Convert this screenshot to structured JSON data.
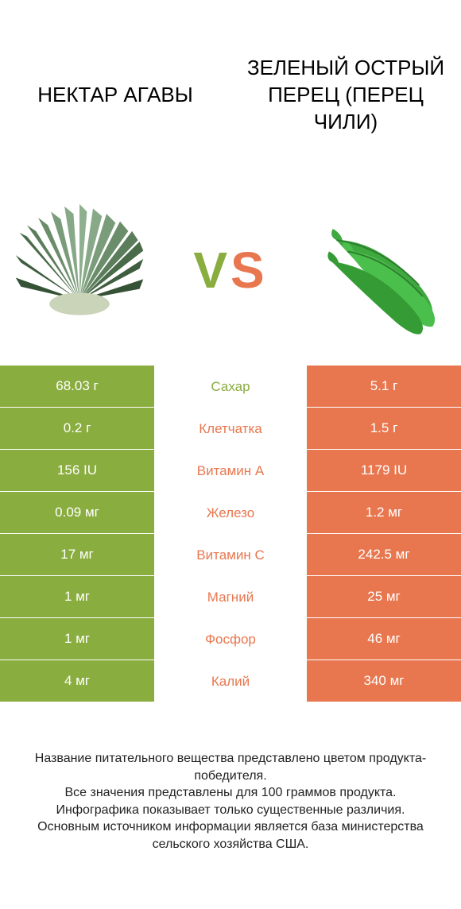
{
  "colors": {
    "left": "#8aad3f",
    "right": "#e8774f",
    "white": "#ffffff",
    "text": "#222222"
  },
  "titles": {
    "left": "НЕКТАР АГАВЫ",
    "right": "ЗЕЛЕНЫЙ ОСТРЫЙ ПЕРЕЦ (ПЕРЕЦ ЧИЛИ)"
  },
  "vs": {
    "v": "V",
    "s": "S"
  },
  "rows": [
    {
      "left": "68.03 г",
      "label": "Сахар",
      "right": "5.1 г",
      "winner": "left"
    },
    {
      "left": "0.2 г",
      "label": "Клетчатка",
      "right": "1.5 г",
      "winner": "right"
    },
    {
      "left": "156 IU",
      "label": "Витамин A",
      "right": "1179 IU",
      "winner": "right"
    },
    {
      "left": "0.09 мг",
      "label": "Железо",
      "right": "1.2 мг",
      "winner": "right"
    },
    {
      "left": "17 мг",
      "label": "Витамин C",
      "right": "242.5 мг",
      "winner": "right"
    },
    {
      "left": "1 мг",
      "label": "Магний",
      "right": "25 мг",
      "winner": "right"
    },
    {
      "left": "1 мг",
      "label": "Фосфор",
      "right": "46 мг",
      "winner": "right"
    },
    {
      "left": "4 мг",
      "label": "Калий",
      "right": "340 мг",
      "winner": "right"
    }
  ],
  "footer": "Название питательного вещества представлено цветом продукта-победителя.\nВсе значения представлены для 100 граммов продукта.\nИнфографика показывает только существенные различия.\nОсновным источником информации является база министерства сельского хозяйства США."
}
